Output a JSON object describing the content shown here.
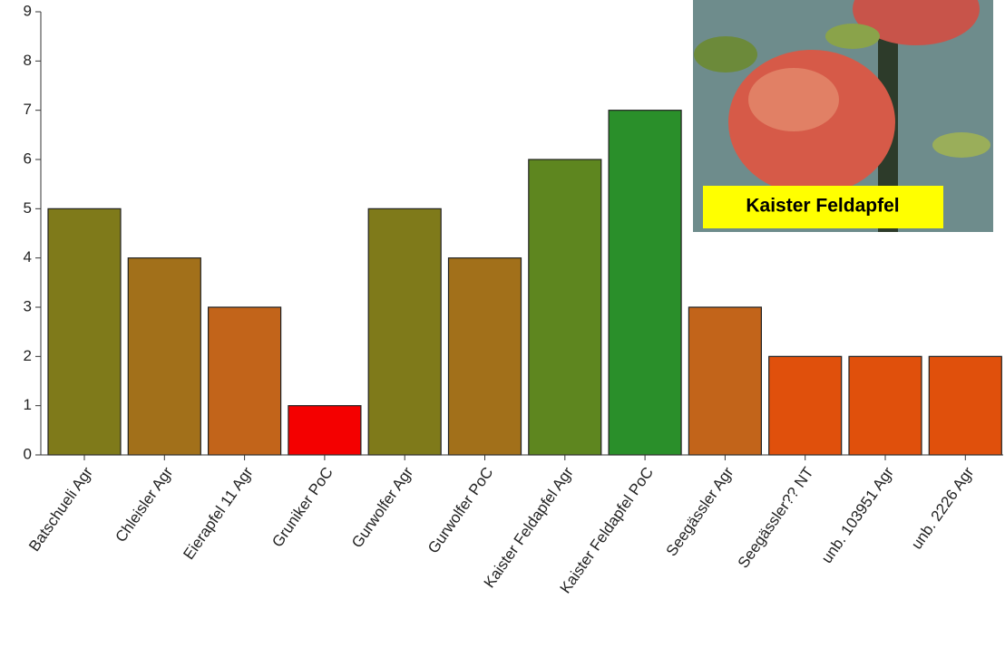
{
  "chart_data": {
    "type": "bar",
    "categories": [
      "Batschueli Agr",
      "Chleisler Agr",
      "Eierapfel 11 Agr",
      "Gruniker PoC",
      "Gurwolfer Agr",
      "Gurwolfer PoC",
      "Kaister Feldapfel Agr",
      "Kaister Feldapfel PoC",
      "Seegässler Agr",
      "Seegässler?? NT",
      "unb. 103951 Agr",
      "unb. 2226 Agr"
    ],
    "values": [
      5,
      4,
      3,
      1,
      5,
      4,
      6,
      7,
      3,
      2,
      2,
      2
    ],
    "colors": [
      "#7f7a1a",
      "#a2701a",
      "#c2641a",
      "#f40000",
      "#7f7a1a",
      "#a2701a",
      "#5e861f",
      "#2a8f2a",
      "#c2641a",
      "#e0500c",
      "#e0500c",
      "#e0500c"
    ],
    "ylim": [
      0,
      9
    ],
    "yticks": [
      0,
      1,
      2,
      3,
      4,
      5,
      6,
      7,
      8,
      9
    ],
    "inset_label": "Kaister Feldapfel"
  }
}
